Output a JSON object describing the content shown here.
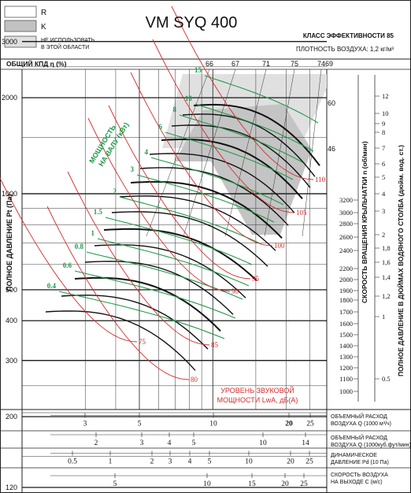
{
  "legend": [
    {
      "label": "R",
      "fill": "#ffffff"
    },
    {
      "label": "K",
      "fill": "#c2c2c2"
    },
    {
      "label": "НЕ ИСПОЛЬЗОВАТЬ\nВ ЭТОЙ ОБЛАСТИ",
      "fill": "#e0e0e0"
    }
  ],
  "header": {
    "model": "VM SYQ 400",
    "efficiency_class": "КЛАСС ЭФФЕКТИВНОСТИ 85",
    "air_density": "ПЛОТНОСТЬ ВОЗДУХА: 1,2 кг/м³",
    "eff_label": "ОБЩИЙ КПД η (%)"
  },
  "colors": {
    "power": "#1f9a4a",
    "sound": "#d62b2b",
    "speed": "#111111",
    "grey_zone": "#c4c4c4",
    "light_zone": "#e0e0e0"
  },
  "chart_data": {
    "type": "line",
    "title": "VM SYQ 400",
    "xlabel": "ОБЪЕМНЫЙ РАСХОД ВОЗДУХА Q (1000 м³/ч)",
    "ylabel": "ПОЛНОЕ ДАВЛЕНИЕ Pt (Па)",
    "y2label": "СКОРОСТЬ ВРАЩЕНИЯ КРЫЛЬЧАТКИ n (об/мин)",
    "y3label": "ПОЛНОЕ ДАВЛЕНИЕ В ДЮЙМАХ ВОДЯНОГО СТОЛБА (дюйм. вод. ст.)",
    "x_scale": "log",
    "y_scale": "log",
    "xlim": [
      2.2,
      28
    ],
    "ylim": [
      100,
      4200
    ],
    "y_ticks": [
      120,
      200,
      300,
      400,
      500,
      1000,
      2000,
      3000
    ],
    "rpm_ticks": [
      1000,
      1100,
      1200,
      1300,
      1400,
      1500,
      1600,
      1700,
      1800,
      1900,
      2000,
      2200,
      2400,
      2600,
      2800,
      3000,
      3200
    ],
    "inch_ticks": [
      "0.5",
      "1",
      "1,2",
      "1,4",
      "1,6",
      "1,8",
      "2",
      "3",
      "4",
      "5",
      "6",
      "7",
      "8",
      "9",
      "10",
      "12"
    ],
    "efficiency_ticks": [
      "66",
      "67",
      "71",
      "75",
      "74",
      "69",
      "60",
      "46"
    ],
    "power_labels_kw": [
      "0.4",
      "0.6",
      "0.8",
      "1",
      "1.5",
      "2",
      "3",
      "4",
      "6",
      "8",
      "10",
      "15"
    ],
    "sound_labels_db": [
      "75",
      "80",
      "85",
      "90",
      "95",
      "100",
      "105",
      "110"
    ],
    "sound_label_text": "УРОВЕНЬ ЗВУКОВОЙ\nМОЩНОСТИ LwA, дБ(А)",
    "power_label_text": "МОЩНОСТЬ\nНА ВАЛУ (кВт)",
    "speed_curves_rpm": [
      1000,
      1100,
      1200,
      1300,
      1400,
      1500,
      1600,
      1700,
      1800,
      1900,
      2000,
      2200,
      2400,
      2600,
      2800,
      3000,
      3200
    ],
    "bottom_scales": [
      {
        "label": "ОБЪЕМНЫЙ РАСХОД\nВОЗДУХА Q (1000 м³/ч)",
        "ticks": [
          "3",
          "5",
          "10",
          "20",
          "25"
        ]
      },
      {
        "label": "ОБЪЕМНЫЙ РАСХОД\nВОЗДУХА Q (1000куб.фут/мин)",
        "ticks": [
          "2",
          "3",
          "4",
          "5",
          "10",
          "14"
        ]
      },
      {
        "label": "ДИНАМИЧЕСКОЕ\nДАВЛЕНИЕ Pd (10 Па)",
        "ticks": [
          "0.5",
          "1",
          "2",
          "3",
          "4",
          "5",
          "10",
          "20",
          "25"
        ]
      },
      {
        "label": "СКОРОСТЬ ВОЗДУХА\nНА ВЫХОДЕ C (м/с)",
        "ticks": [
          "5",
          "10",
          "15",
          "20",
          "25"
        ]
      }
    ]
  }
}
